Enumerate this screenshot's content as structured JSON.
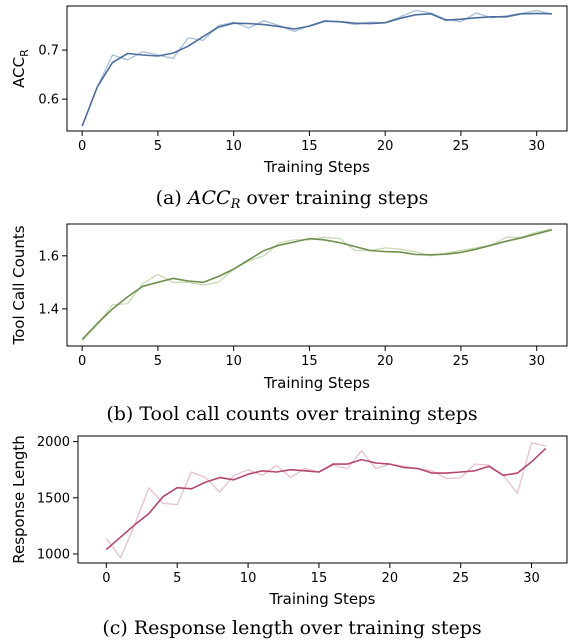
{
  "chart_data": [
    {
      "type": "line",
      "caption_prefix": "(a) ",
      "caption_math": "ACC",
      "caption_math_sub": "R",
      "caption_suffix": " over training steps",
      "xlabel": "Training Steps",
      "ylabel": "ACC",
      "ylabel_sub": "R",
      "xlim": [
        -1,
        32
      ],
      "ylim": [
        0.535,
        0.79
      ],
      "xticks": [
        0,
        5,
        10,
        15,
        20,
        25,
        30
      ],
      "yticks": [
        0.6,
        0.7
      ],
      "ytick_labels": [
        "0.6",
        "0.7"
      ],
      "x": [
        0,
        1,
        2,
        3,
        4,
        5,
        6,
        7,
        8,
        9,
        10,
        11,
        12,
        13,
        14,
        15,
        16,
        17,
        18,
        19,
        20,
        21,
        22,
        23,
        24,
        25,
        26,
        27,
        28,
        29,
        30,
        31
      ],
      "series": [
        {
          "color": "#a9bfd8",
          "values": [
            0.545,
            0.625,
            0.69,
            0.68,
            0.697,
            0.69,
            0.683,
            0.725,
            0.72,
            0.75,
            0.757,
            0.745,
            0.76,
            0.75,
            0.738,
            0.75,
            0.76,
            0.758,
            0.752,
            0.757,
            0.756,
            0.768,
            0.781,
            0.776,
            0.763,
            0.758,
            0.776,
            0.766,
            0.77,
            0.775,
            0.781,
            0.773
          ]
        },
        {
          "color": "#4c6e9e",
          "values": [
            0.545,
            0.625,
            0.675,
            0.693,
            0.69,
            0.688,
            0.694,
            0.708,
            0.728,
            0.747,
            0.755,
            0.754,
            0.752,
            0.748,
            0.743,
            0.749,
            0.759,
            0.758,
            0.755,
            0.754,
            0.756,
            0.765,
            0.772,
            0.774,
            0.761,
            0.763,
            0.766,
            0.768,
            0.768,
            0.774,
            0.775,
            0.774
          ]
        }
      ]
    },
    {
      "type": "line",
      "caption": "(b) Tool call counts over training steps",
      "xlabel": "Training Steps",
      "ylabel": "Tool Call Counts",
      "xlim": [
        -1,
        32
      ],
      "ylim": [
        1.26,
        1.72
      ],
      "xticks": [
        0,
        5,
        10,
        15,
        20,
        25,
        30
      ],
      "yticks": [
        1.4,
        1.6
      ],
      "ytick_labels": [
        "1.4",
        "1.6"
      ],
      "x": [
        0,
        1,
        2,
        3,
        4,
        5,
        6,
        7,
        8,
        9,
        10,
        11,
        12,
        13,
        14,
        15,
        16,
        17,
        18,
        19,
        20,
        21,
        22,
        23,
        24,
        25,
        26,
        27,
        28,
        29,
        30,
        31
      ],
      "series": [
        {
          "color": "#c9dbb6",
          "values": [
            1.28,
            1.34,
            1.415,
            1.42,
            1.495,
            1.53,
            1.5,
            1.5,
            1.49,
            1.5,
            1.55,
            1.58,
            1.6,
            1.65,
            1.66,
            1.66,
            1.67,
            1.665,
            1.62,
            1.62,
            1.63,
            1.625,
            1.615,
            1.6,
            1.61,
            1.62,
            1.63,
            1.64,
            1.67,
            1.67,
            1.69,
            1.7
          ]
        },
        {
          "color": "#6f8f4e",
          "values": [
            1.285,
            1.345,
            1.4,
            1.445,
            1.485,
            1.5,
            1.515,
            1.505,
            1.5,
            1.522,
            1.55,
            1.585,
            1.62,
            1.64,
            1.652,
            1.665,
            1.66,
            1.65,
            1.635,
            1.62,
            1.616,
            1.614,
            1.605,
            1.604,
            1.606,
            1.613,
            1.625,
            1.64,
            1.655,
            1.668,
            1.683,
            1.698
          ]
        }
      ]
    },
    {
      "type": "line",
      "caption": "(c) Response length over training steps",
      "xlabel": "Training Steps",
      "ylabel": "Response Length",
      "xlim": [
        -2,
        32.5
      ],
      "ylim": [
        920,
        2050
      ],
      "xticks": [
        0,
        5,
        10,
        15,
        20,
        25,
        30
      ],
      "yticks": [
        1000,
        1500,
        2000
      ],
      "ytick_labels": [
        "1000",
        "1500",
        "2000"
      ],
      "x": [
        0,
        1,
        2,
        3,
        4,
        5,
        6,
        7,
        8,
        9,
        10,
        11,
        12,
        13,
        14,
        15,
        16,
        17,
        18,
        19,
        20,
        21,
        22,
        23,
        24,
        25,
        26,
        27,
        28,
        29,
        30,
        31
      ],
      "series": [
        {
          "color": "#e8c0cd",
          "values": [
            1140,
            965,
            1260,
            1590,
            1450,
            1440,
            1730,
            1680,
            1550,
            1700,
            1750,
            1700,
            1790,
            1680,
            1760,
            1730,
            1790,
            1760,
            1920,
            1760,
            1800,
            1780,
            1760,
            1740,
            1670,
            1680,
            1800,
            1790,
            1700,
            1540,
            1990,
            1960
          ]
        },
        {
          "color": "#b5476f",
          "values": [
            1040,
            1150,
            1260,
            1360,
            1510,
            1590,
            1580,
            1640,
            1680,
            1660,
            1710,
            1740,
            1730,
            1750,
            1740,
            1730,
            1800,
            1800,
            1840,
            1810,
            1800,
            1770,
            1760,
            1720,
            1720,
            1730,
            1740,
            1780,
            1700,
            1720,
            1820,
            1940
          ]
        }
      ]
    }
  ]
}
